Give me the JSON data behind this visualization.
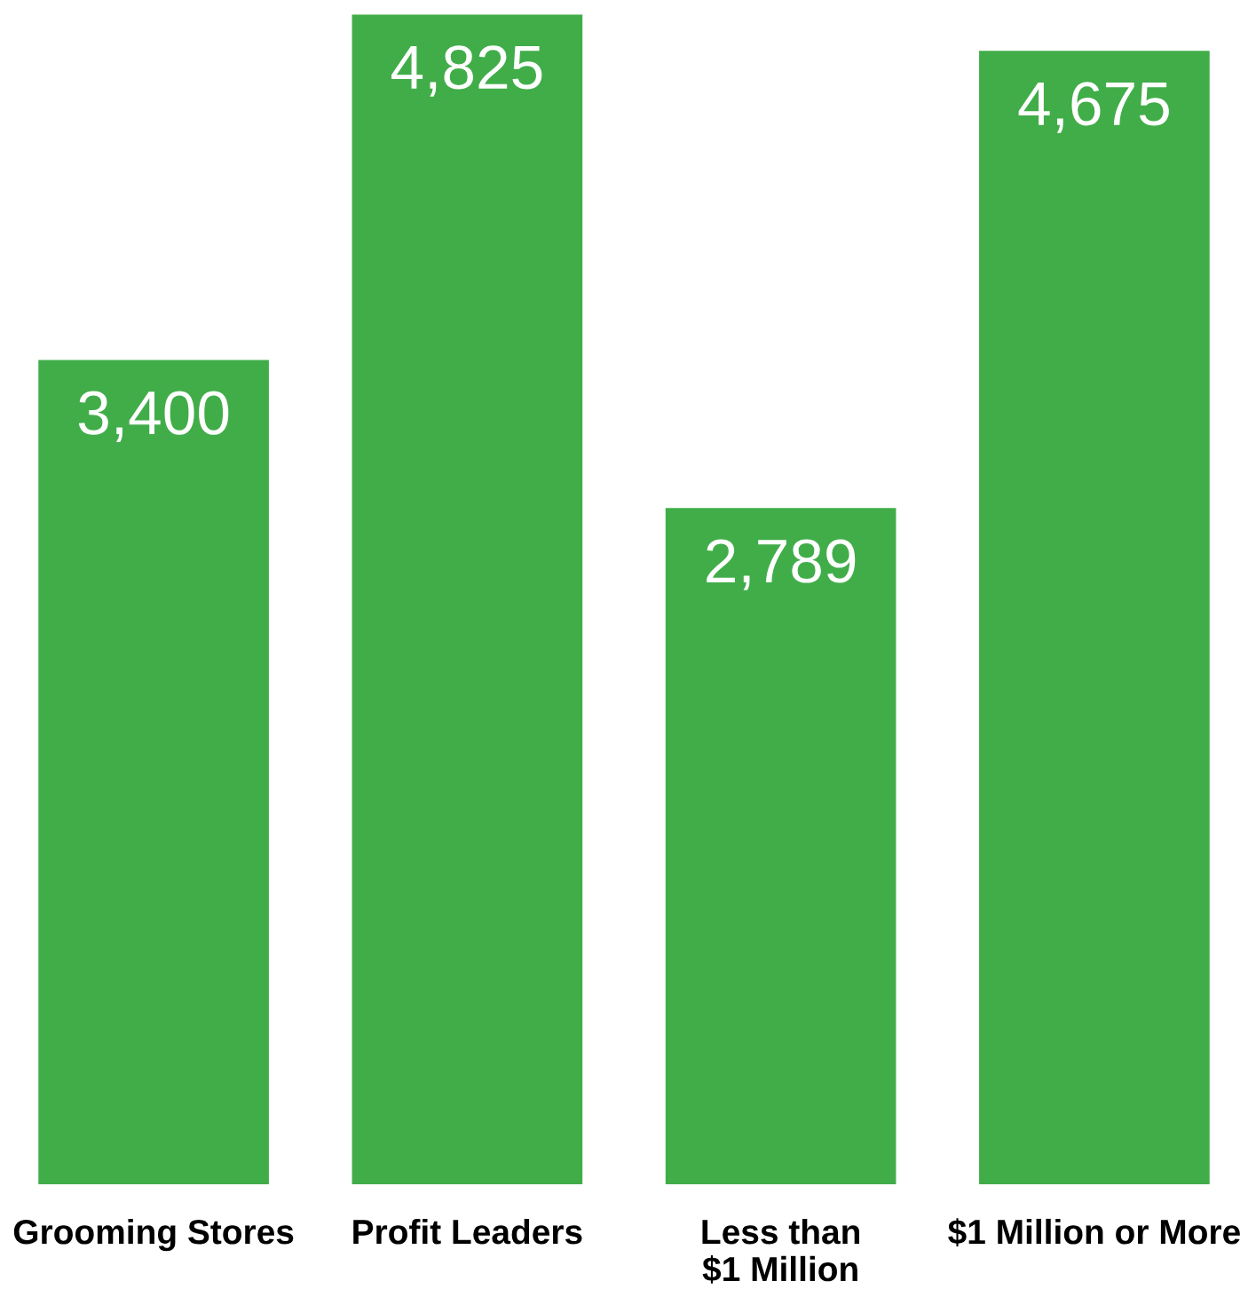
{
  "chart_data": {
    "type": "bar",
    "categories": [
      "Grooming Stores",
      "Profit Leaders",
      "Less than\n$1 Million",
      "$1 Million or More"
    ],
    "values": [
      3400,
      4825,
      2789,
      4675
    ],
    "color": "#41ad49",
    "value_labels": [
      "3,400",
      "4,825",
      "2,789",
      "4,675"
    ]
  }
}
